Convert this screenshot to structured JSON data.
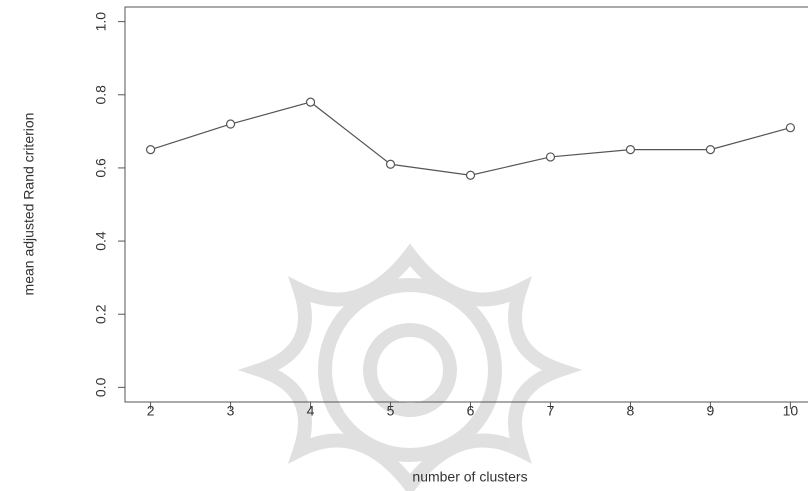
{
  "chart_data": {
    "type": "line",
    "x_label": "number of clusters",
    "y_label": "mean adjusted Rand criterion",
    "x": [
      2,
      3,
      4,
      5,
      6,
      7,
      8,
      9,
      10
    ],
    "series": [
      {
        "name": "mean adjusted Rand criterion",
        "color": "#555555",
        "values": [
          0.65,
          0.72,
          0.78,
          0.61,
          0.58,
          0.63,
          0.65,
          0.65,
          0.71
        ]
      }
    ],
    "xlim": [
      1.68,
      10.32
    ],
    "xticks": [
      2,
      3,
      4,
      5,
      6,
      7,
      8,
      9,
      10
    ],
    "ylim": [
      -0.04,
      1.04
    ],
    "yticks": [
      {
        "value": 0,
        "label": "0.0"
      },
      {
        "value": 0.2,
        "label": "0.2"
      },
      {
        "value": 0.4,
        "label": "0.4"
      },
      {
        "value": 0.6,
        "label": "0.6"
      },
      {
        "value": 0.8,
        "label": "0.8"
      },
      {
        "value": 1,
        "label": "1.0"
      }
    ]
  }
}
